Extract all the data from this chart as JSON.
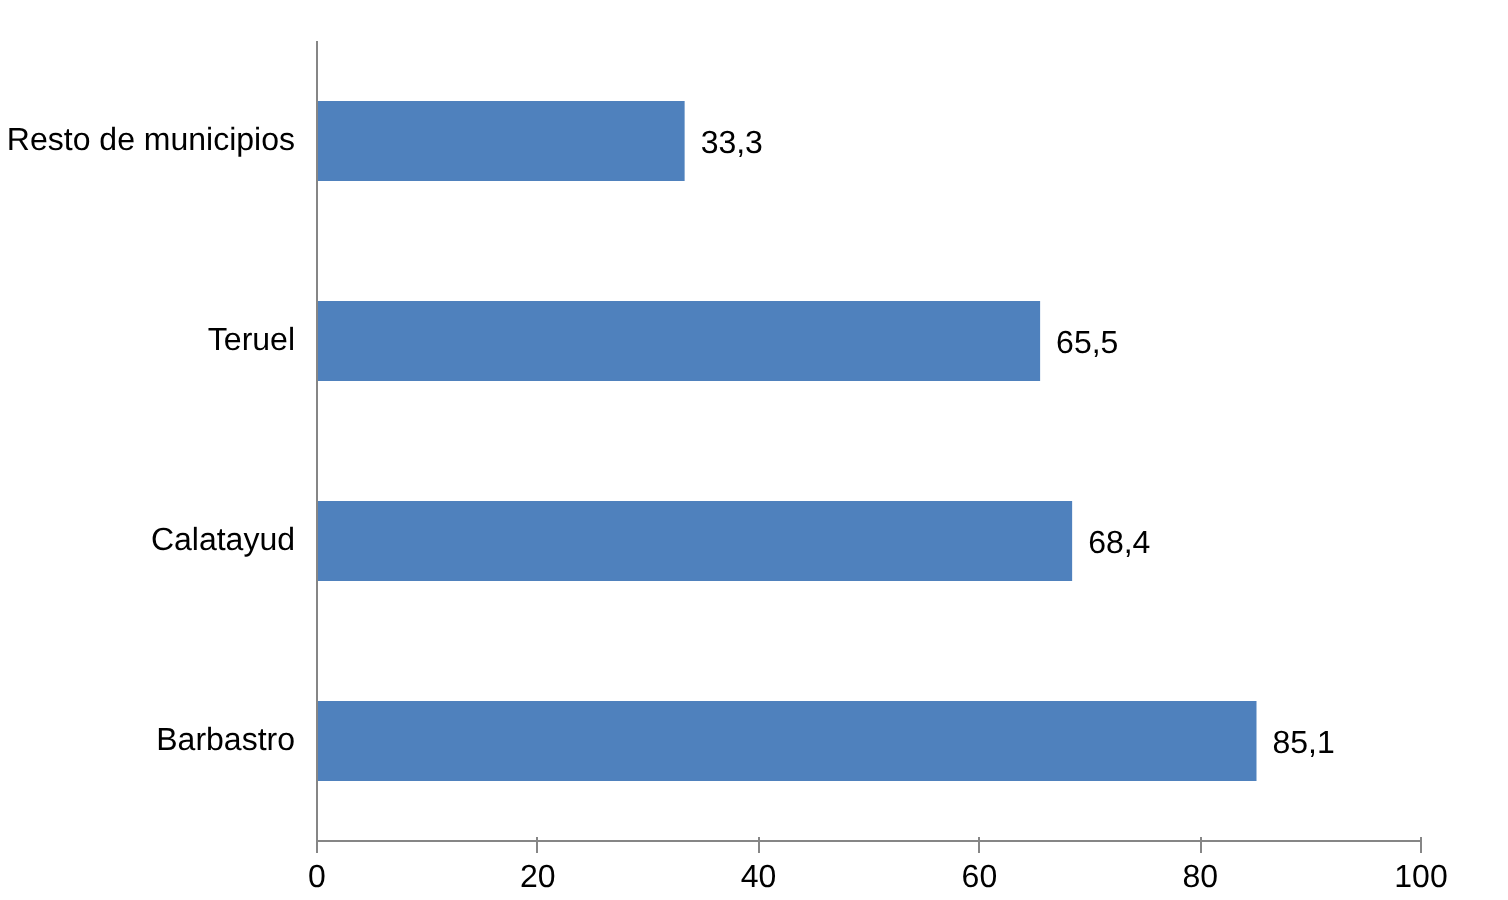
{
  "chart_data": {
    "type": "bar",
    "orientation": "horizontal",
    "categories": [
      "Resto de municipios",
      "Teruel",
      "Calatayud",
      "Barbastro"
    ],
    "values": [
      33.3,
      65.5,
      68.4,
      85.1
    ],
    "value_labels": [
      "33,3",
      "65,5",
      "68,4",
      "85,1"
    ],
    "color": "#4f81bd",
    "xlim": [
      0,
      100
    ],
    "xticks": [
      0,
      20,
      40,
      60,
      80,
      100
    ],
    "grid": false
  }
}
